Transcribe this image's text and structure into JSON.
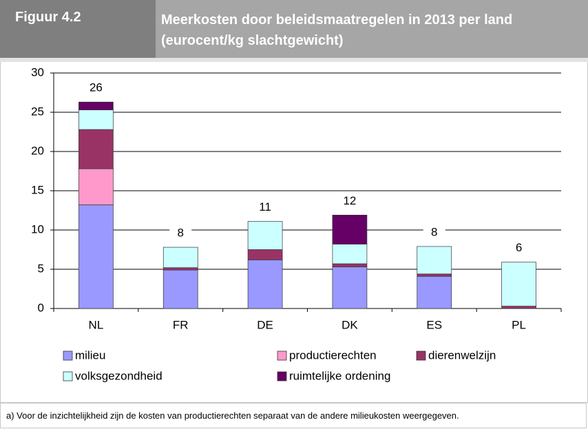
{
  "chart_data": {
    "type": "stacked_bar",
    "figure_label": "Figuur 4.2",
    "title": "Meerkosten door beleidsmaatregelen in 2013 per land",
    "subtitle": "(eurocent/kg slachtgewicht)",
    "categories": [
      "NL",
      "FR",
      "DE",
      "DK",
      "ES",
      "PL"
    ],
    "series": [
      {
        "name": "milieu",
        "color": "#9999ff",
        "values": [
          13.2,
          4.9,
          6.2,
          5.3,
          4.1,
          0
        ]
      },
      {
        "name": "productierechten",
        "color": "#ff99cc",
        "values": [
          4.6,
          0,
          0,
          0,
          0,
          0
        ]
      },
      {
        "name": "dierenwelzijn",
        "color": "#993366",
        "values": [
          5.0,
          0.3,
          1.3,
          0.4,
          0.3,
          0.3
        ]
      },
      {
        "name": "volksgezondheid",
        "color": "#ccffff",
        "values": [
          2.5,
          2.6,
          3.6,
          2.5,
          3.5,
          5.6
        ]
      },
      {
        "name": "ruimtelijke ordening",
        "color": "#660066",
        "values": [
          1.0,
          0,
          0,
          3.7,
          0,
          0
        ]
      }
    ],
    "totals": [
      26,
      8,
      11,
      12,
      8,
      6
    ],
    "ylim": [
      0,
      30
    ],
    "yticks": [
      0,
      5,
      10,
      15,
      20,
      25,
      30
    ],
    "grid": true,
    "note": "a) Voor de inzichtelijkheid zijn de kosten van productierechten separaat van de andere milieukosten weergegeven."
  }
}
